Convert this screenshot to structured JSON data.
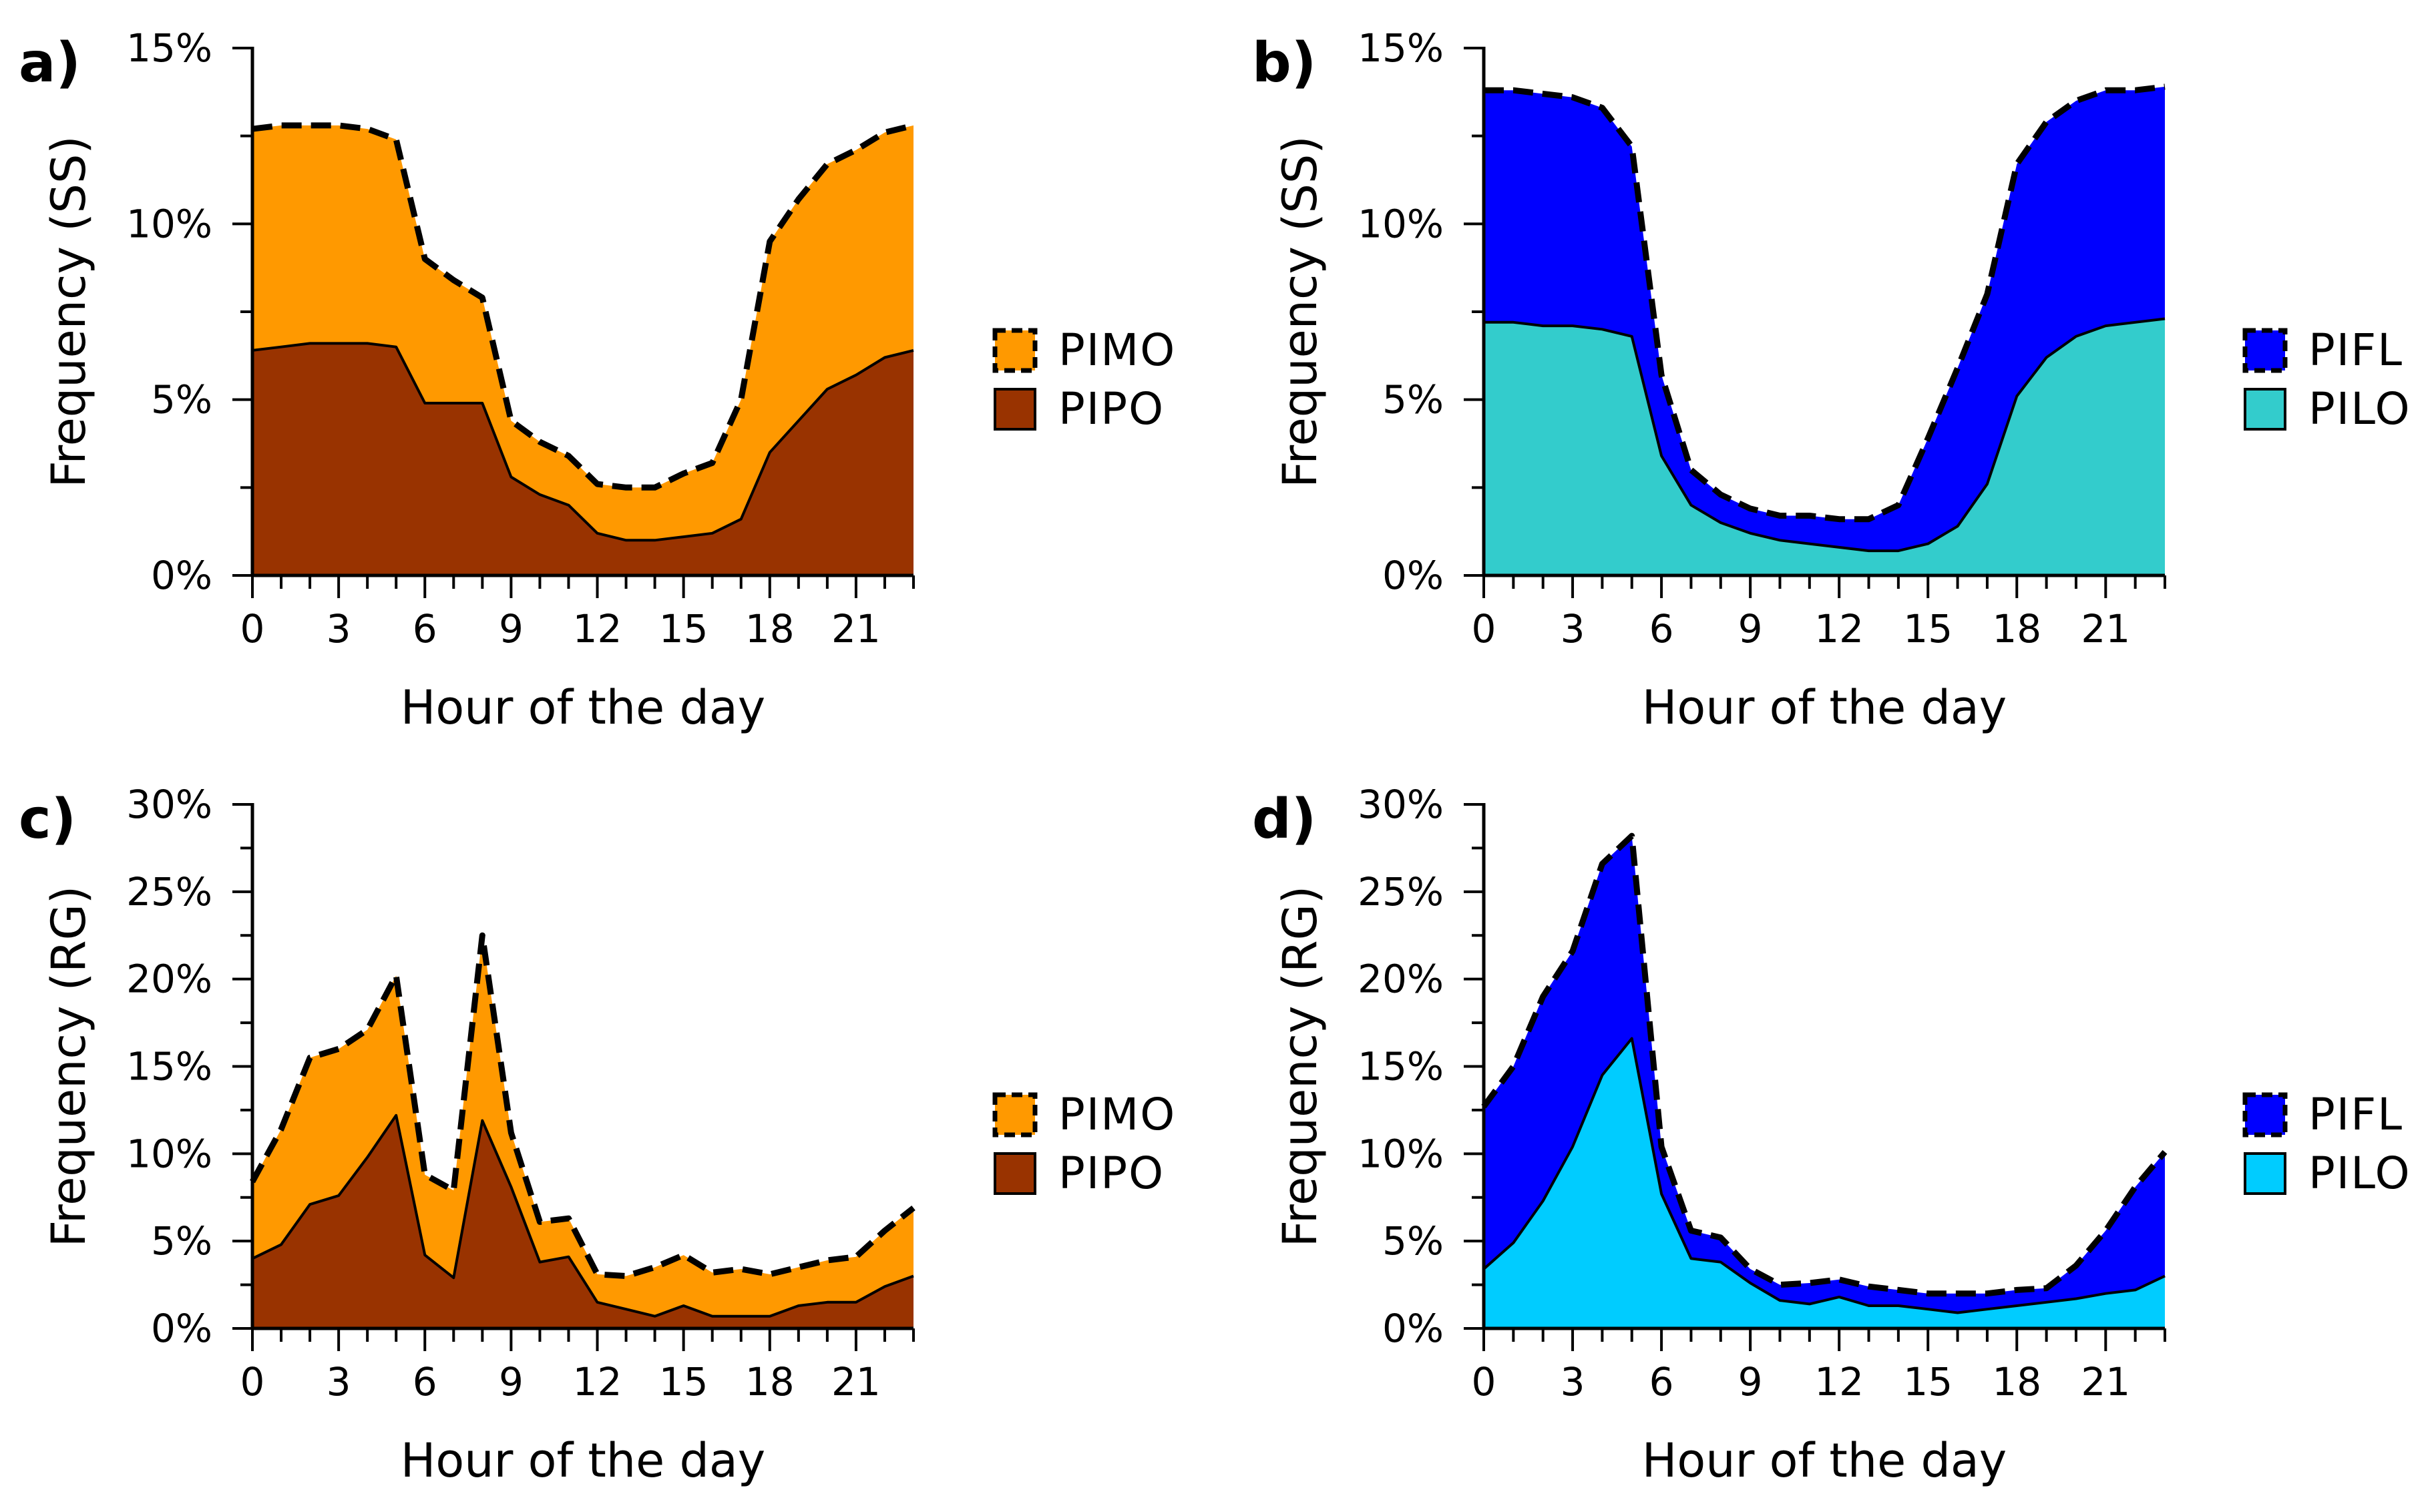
{
  "chart_data": [
    {
      "panel_label": "a)",
      "type": "area",
      "stacked": true,
      "xlabel": "Hour of the day",
      "ylabel": "Frequency (SS)",
      "xlim": [
        0,
        23
      ],
      "ylim": [
        0,
        15
      ],
      "xticks": [
        0,
        3,
        6,
        9,
        12,
        15,
        18,
        21
      ],
      "xtick_labels": [
        "0",
        "3",
        "6",
        "9",
        "12",
        "15",
        "18",
        "21"
      ],
      "yticks": [
        0,
        5,
        10,
        15
      ],
      "ytick_labels": [
        "0%",
        "5%",
        "10%",
        "15%"
      ],
      "grid": false,
      "legend_position": "right",
      "x": [
        0,
        1,
        2,
        3,
        4,
        5,
        6,
        7,
        8,
        9,
        10,
        11,
        12,
        13,
        14,
        15,
        16,
        17,
        18,
        19,
        20,
        21,
        22,
        23
      ],
      "series": [
        {
          "name": "PIPO",
          "color": "#993300",
          "border": "solid",
          "values": [
            6.4,
            6.5,
            6.6,
            6.6,
            6.6,
            6.5,
            4.9,
            4.9,
            4.9,
            2.8,
            2.3,
            2.0,
            1.2,
            1.0,
            1.0,
            1.1,
            1.2,
            1.6,
            3.5,
            4.4,
            5.3,
            5.7,
            6.2,
            6.4
          ]
        },
        {
          "name": "PIMO",
          "color": "#ff9900",
          "border": "dashed",
          "values": [
            6.3,
            6.3,
            6.2,
            6.2,
            6.1,
            5.9,
            4.1,
            3.5,
            3.0,
            1.6,
            1.5,
            1.4,
            1.4,
            1.5,
            1.5,
            1.8,
            2.0,
            3.4,
            6.0,
            6.3,
            6.4,
            6.4,
            6.4,
            6.4
          ]
        }
      ]
    },
    {
      "panel_label": "b)",
      "type": "area",
      "stacked": true,
      "xlabel": "Hour of the day",
      "ylabel": "Frequency (SS)",
      "xlim": [
        0,
        23
      ],
      "ylim": [
        0,
        15
      ],
      "xticks": [
        0,
        3,
        6,
        9,
        12,
        15,
        18,
        21
      ],
      "xtick_labels": [
        "0",
        "3",
        "6",
        "9",
        "12",
        "15",
        "18",
        "21"
      ],
      "yticks": [
        0,
        5,
        10,
        15
      ],
      "ytick_labels": [
        "0%",
        "5%",
        "10%",
        "15%"
      ],
      "grid": false,
      "legend_position": "right",
      "x": [
        0,
        1,
        2,
        3,
        4,
        5,
        6,
        7,
        8,
        9,
        10,
        11,
        12,
        13,
        14,
        15,
        16,
        17,
        18,
        19,
        20,
        21,
        22,
        23
      ],
      "series": [
        {
          "name": "PILO",
          "color": "#33cccc",
          "border": "solid",
          "values": [
            7.2,
            7.2,
            7.1,
            7.1,
            7.0,
            6.8,
            3.4,
            2.0,
            1.5,
            1.2,
            1.0,
            0.9,
            0.8,
            0.7,
            0.7,
            0.9,
            1.4,
            2.6,
            5.1,
            6.2,
            6.8,
            7.1,
            7.2,
            7.3
          ]
        },
        {
          "name": "PIFL",
          "color": "#0000ff",
          "border": "dashed",
          "values": [
            6.6,
            6.6,
            6.6,
            6.5,
            6.3,
            5.4,
            2.3,
            1.0,
            0.8,
            0.7,
            0.7,
            0.8,
            0.8,
            0.9,
            1.3,
            3.0,
            4.5,
            5.4,
            6.6,
            6.7,
            6.7,
            6.7,
            6.6,
            6.6
          ]
        }
      ]
    },
    {
      "panel_label": "c)",
      "type": "area",
      "stacked": true,
      "xlabel": "Hour of the day",
      "ylabel": "Frequency (RG)",
      "xlim": [
        0,
        23
      ],
      "ylim": [
        0,
        30
      ],
      "xticks": [
        0,
        3,
        6,
        9,
        12,
        15,
        18,
        21
      ],
      "xtick_labels": [
        "0",
        "3",
        "6",
        "9",
        "12",
        "15",
        "18",
        "21"
      ],
      "yticks": [
        0,
        5,
        10,
        15,
        20,
        25,
        30
      ],
      "ytick_labels": [
        "0%",
        "5%",
        "10%",
        "15%",
        "20%",
        "25%",
        "30%"
      ],
      "grid": false,
      "legend_position": "right",
      "x": [
        0,
        1,
        2,
        3,
        4,
        5,
        6,
        7,
        8,
        9,
        10,
        11,
        12,
        13,
        14,
        15,
        16,
        17,
        18,
        19,
        20,
        21,
        22,
        23
      ],
      "series": [
        {
          "name": "PIPO",
          "color": "#993300",
          "border": "solid",
          "values": [
            4.0,
            4.8,
            7.1,
            7.6,
            9.8,
            12.2,
            4.2,
            2.9,
            11.9,
            8.1,
            3.8,
            4.1,
            1.5,
            1.1,
            0.7,
            1.3,
            0.7,
            0.7,
            0.7,
            1.3,
            1.5,
            1.5,
            2.4,
            3.0
          ]
        },
        {
          "name": "PIMO",
          "color": "#ff9900",
          "border": "dashed",
          "values": [
            4.4,
            6.6,
            8.4,
            8.4,
            7.3,
            8.0,
            4.6,
            5.0,
            10.6,
            3.1,
            2.3,
            2.2,
            1.6,
            1.9,
            2.8,
            2.9,
            2.5,
            2.7,
            2.4,
            2.2,
            2.4,
            2.6,
            3.2,
            3.9
          ]
        }
      ]
    },
    {
      "panel_label": "d)",
      "type": "area",
      "stacked": true,
      "xlabel": "Hour of the day",
      "ylabel": "Frequency (RG)",
      "xlim": [
        0,
        23
      ],
      "ylim": [
        0,
        30
      ],
      "xticks": [
        0,
        3,
        6,
        9,
        12,
        15,
        18,
        21
      ],
      "xtick_labels": [
        "0",
        "3",
        "6",
        "9",
        "12",
        "15",
        "18",
        "21"
      ],
      "yticks": [
        0,
        5,
        10,
        15,
        20,
        25,
        30
      ],
      "ytick_labels": [
        "0%",
        "5%",
        "10%",
        "15%",
        "20%",
        "25%",
        "30%"
      ],
      "grid": false,
      "legend_position": "right",
      "x": [
        0,
        1,
        2,
        3,
        4,
        5,
        6,
        7,
        8,
        9,
        10,
        11,
        12,
        13,
        14,
        15,
        16,
        17,
        18,
        19,
        20,
        21,
        22,
        23
      ],
      "series": [
        {
          "name": "PILO",
          "color": "#00ccff",
          "border": "solid",
          "values": [
            3.4,
            4.9,
            7.3,
            10.4,
            14.5,
            16.6,
            7.7,
            4.0,
            3.8,
            2.6,
            1.6,
            1.4,
            1.8,
            1.3,
            1.3,
            1.1,
            0.9,
            1.1,
            1.3,
            1.5,
            1.7,
            2.0,
            2.2,
            3.0
          ]
        },
        {
          "name": "PIFL",
          "color": "#0000ff",
          "border": "dashed",
          "values": [
            9.3,
            10.1,
            11.7,
            11.2,
            12.1,
            11.6,
            2.7,
            1.6,
            1.4,
            0.8,
            0.9,
            1.2,
            1.0,
            1.1,
            0.9,
            0.9,
            1.1,
            0.9,
            0.9,
            0.8,
            1.9,
            3.6,
            5.9,
            7.1
          ]
        }
      ]
    }
  ]
}
